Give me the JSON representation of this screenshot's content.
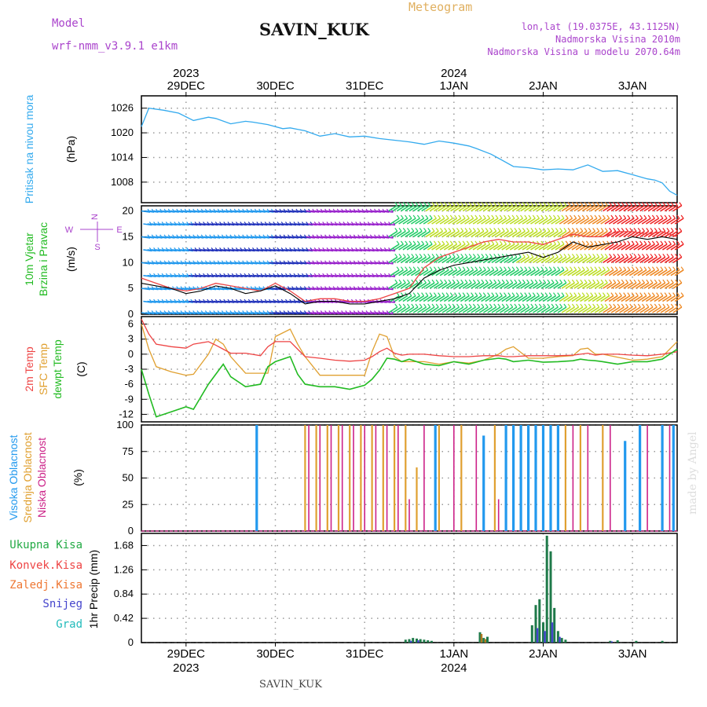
{
  "header": {
    "model_label": "Model",
    "model_name": "wrf-nmm_v3.9.1 e1km",
    "station": "SAVIN_KUK",
    "chart_kind": "Meteogram",
    "location": "lon,lat (19.0375E, 43.1125N)",
    "elevation": "Nadmorska Visina 2010m",
    "model_elevation": "Nadmorska Visina u modelu 2070.64m",
    "footer_station": "SAVIN_KUK",
    "watermark": "made by Angel"
  },
  "colors": {
    "pressure": "#33aaee",
    "wind_axis_label": "#22bb22",
    "temp_2m": "#ee4444",
    "temp_sfc": "#e0a030",
    "dewpoint": "#22bb22",
    "cloud_high": "#2299ee",
    "cloud_mid": "#e0a030",
    "cloud_low": "#cc2288",
    "precip_total": "#22aa44",
    "precip_conv": "#ee4444",
    "precip_frz": "#ee7733",
    "precip_snow": "#4444cc",
    "precip_graup": "#22bbbb",
    "title_accent": "#e0b060",
    "meta_text": "#aa44cc"
  },
  "time_axis": {
    "top_years": [
      {
        "label": "2023",
        "at": "29DEC"
      },
      {
        "label": "2024",
        "at": "1JAN"
      }
    ],
    "bottom_years": [
      {
        "label": "2023",
        "at": "29DEC"
      },
      {
        "label": "2024",
        "at": "1JAN"
      }
    ],
    "days": [
      "29DEC",
      "30DEC",
      "31DEC",
      "1JAN",
      "2JAN",
      "3JAN"
    ],
    "range_hours": [
      0,
      144
    ]
  },
  "chart_data": [
    {
      "type": "line",
      "panel": "pressure",
      "ylabel_line1": "Pritisak na nivou mora",
      "ylabel_unit": "(hPa)",
      "yticks": [
        1008,
        1014,
        1020,
        1026
      ],
      "ylim": [
        1003,
        1029
      ],
      "x_hours": [
        0,
        2,
        6,
        10,
        14,
        18,
        20,
        24,
        28,
        30,
        34,
        38,
        40,
        44,
        48,
        52,
        56,
        60,
        64,
        68,
        72,
        76,
        80,
        84,
        88,
        90,
        94,
        96,
        100,
        104,
        108,
        112,
        116,
        120,
        124,
        128,
        132,
        136,
        138,
        140,
        142,
        144
      ],
      "values": [
        1021.5,
        1026,
        1025.5,
        1024.8,
        1023,
        1023.8,
        1023.5,
        1022.2,
        1022.8,
        1022.6,
        1022,
        1021,
        1021.2,
        1020.5,
        1019.2,
        1019.8,
        1019,
        1019.2,
        1018.6,
        1018.2,
        1017.8,
        1017.2,
        1018,
        1017.5,
        1016.8,
        1016.2,
        1014.8,
        1013.8,
        1011.8,
        1011.5,
        1011,
        1011.2,
        1011,
        1012.2,
        1010.6,
        1010.8,
        1009.8,
        1008.8,
        1008.5,
        1007.8,
        1005.8,
        1004.8
      ]
    },
    {
      "type": "line",
      "panel": "wind",
      "ylabel_line1": "10m Vjetar",
      "ylabel_line2": "Brzina i Pravac",
      "ylabel_unit": "(m/s)",
      "compass": [
        "N",
        "E",
        "S",
        "W"
      ],
      "yticks": [
        0,
        5,
        10,
        15,
        20
      ],
      "ylim": [
        0,
        21
      ],
      "barb_color_scale": [
        "#2299ee",
        "#2233bb",
        "#9922cc",
        "#22cc66",
        "#bbdd22",
        "#ee8822",
        "#ee2222"
      ],
      "x_hours": [
        0,
        4,
        8,
        12,
        16,
        20,
        24,
        28,
        32,
        36,
        40,
        44,
        48,
        52,
        56,
        60,
        64,
        68,
        72,
        76,
        80,
        84,
        88,
        92,
        96,
        100,
        104,
        108,
        112,
        116,
        120,
        124,
        128,
        132,
        136,
        140,
        144
      ],
      "speed": [
        6,
        5.5,
        5,
        4,
        4.5,
        5.5,
        5,
        4,
        4.5,
        5.5,
        4,
        2,
        2.5,
        2.5,
        2,
        2,
        2.5,
        3,
        4,
        7,
        8.5,
        9.5,
        10,
        10.5,
        11,
        11.5,
        12,
        11,
        12,
        14,
        13,
        13.5,
        14,
        15,
        14.5,
        15,
        14.5
      ],
      "gust": [
        7,
        6,
        5,
        4.5,
        5,
        6,
        5.5,
        5,
        4.5,
        6,
        4.5,
        2.5,
        3,
        3,
        2.5,
        2.5,
        3,
        4,
        5,
        9,
        11,
        12,
        13,
        14,
        14.5,
        14,
        14,
        13.5,
        14.5,
        15.5,
        15,
        15,
        16,
        16,
        15.5,
        16,
        15
      ]
    },
    {
      "type": "line",
      "panel": "temperature",
      "ylabel_line1": "2m Temp",
      "ylabel_line2": "SFC Temp",
      "ylabel_line3": "dewpt Temp",
      "ylabel_unit": "(C)",
      "yticks": [
        -12,
        -9,
        -6,
        -3,
        0,
        3,
        6
      ],
      "ylim": [
        -13.5,
        7.5
      ],
      "x_hours": [
        0,
        2,
        4,
        8,
        12,
        14,
        18,
        20,
        22,
        24,
        28,
        32,
        34,
        36,
        40,
        42,
        44,
        48,
        52,
        56,
        60,
        62,
        64,
        66,
        68,
        70,
        72,
        76,
        80,
        84,
        88,
        92,
        96,
        98,
        100,
        104,
        108,
        112,
        116,
        118,
        120,
        122,
        124,
        128,
        132,
        136,
        140,
        144
      ],
      "t2m": [
        7,
        4,
        2,
        1.5,
        1.2,
        2,
        2.5,
        1.8,
        1,
        0.2,
        0.2,
        -0.3,
        1.5,
        2.5,
        2.5,
        1,
        -0.5,
        -0.8,
        -1.2,
        -1.4,
        -1.2,
        -0.5,
        0.5,
        1.2,
        0.2,
        -0.2,
        0,
        0,
        -0.3,
        -0.5,
        -0.5,
        -0.3,
        -0.3,
        -0.5,
        -0.5,
        -0.3,
        -0.3,
        -0.3,
        -0.2,
        0,
        0.2,
        -0.2,
        0,
        0,
        -0.2,
        -0.3,
        0,
        0.5
      ],
      "tsfc": [
        6,
        1,
        -2.5,
        -3.5,
        -4.2,
        -4,
        0,
        3,
        2,
        -0.5,
        -3.8,
        -3.8,
        -3.8,
        3.5,
        5,
        2,
        -0.5,
        -4.2,
        -4.2,
        -4.2,
        -4.2,
        0.5,
        4,
        3.5,
        -0.5,
        -1.5,
        -1.5,
        -1.5,
        -2,
        -1.5,
        -1.8,
        -1.2,
        0,
        1,
        1.5,
        -0.8,
        -0.8,
        -0.5,
        -0.3,
        1,
        1.2,
        0,
        0,
        -0.6,
        -1.2,
        -1,
        -0.5,
        2.5
      ],
      "dewpt": [
        -3,
        -8,
        -12.5,
        -11.5,
        -10.5,
        -11,
        -6,
        -4,
        -2,
        -4.5,
        -6.5,
        -6,
        -2.5,
        -1.5,
        -0.5,
        -4,
        -6,
        -6.5,
        -6.5,
        -7,
        -6.2,
        -5,
        -3.2,
        -0.8,
        -1,
        -1.5,
        -1,
        -2,
        -2.3,
        -1.5,
        -2,
        -1.2,
        -0.8,
        -1,
        -1.5,
        -1.2,
        -1.6,
        -1.5,
        -1.3,
        -1,
        -1.2,
        -1.3,
        -1.5,
        -2,
        -1.5,
        -1.5,
        -1,
        1
      ]
    },
    {
      "type": "bar",
      "panel": "cloud",
      "ylabel_line1": "Visoka Oblacnost",
      "ylabel_line2": "Srednja Oblacnost",
      "ylabel_line3": "Niska Oblacnost",
      "ylabel_unit": "(%)",
      "yticks": [
        0,
        25,
        50,
        75,
        100
      ],
      "ylim": [
        0,
        100
      ],
      "high_bars": [
        {
          "h": 31,
          "v": 100
        },
        {
          "h": 79,
          "v": 100
        },
        {
          "h": 92,
          "v": 90
        },
        {
          "h": 98,
          "v": 100
        },
        {
          "h": 100,
          "v": 100
        },
        {
          "h": 102,
          "v": 100
        },
        {
          "h": 104,
          "v": 100
        },
        {
          "h": 106,
          "v": 100
        },
        {
          "h": 108,
          "v": 100
        },
        {
          "h": 110,
          "v": 100
        },
        {
          "h": 112,
          "v": 100
        },
        {
          "h": 130,
          "v": 85
        },
        {
          "h": 134,
          "v": 100
        },
        {
          "h": 140,
          "v": 100
        },
        {
          "h": 143,
          "v": 100
        }
      ],
      "mid_bars": [
        {
          "h": 44,
          "v": 100
        },
        {
          "h": 47,
          "v": 100
        },
        {
          "h": 50,
          "v": 100
        },
        {
          "h": 53,
          "v": 100
        },
        {
          "h": 56,
          "v": 100
        },
        {
          "h": 59,
          "v": 100
        },
        {
          "h": 62,
          "v": 100
        },
        {
          "h": 65,
          "v": 100
        },
        {
          "h": 68,
          "v": 100
        },
        {
          "h": 71,
          "v": 100
        },
        {
          "h": 74,
          "v": 60
        },
        {
          "h": 80,
          "v": 100
        },
        {
          "h": 86,
          "v": 100
        },
        {
          "h": 95,
          "v": 100
        },
        {
          "h": 114,
          "v": 100
        },
        {
          "h": 118,
          "v": 100
        },
        {
          "h": 124,
          "v": 100
        }
      ],
      "low_bars": [
        {
          "h": 45,
          "v": 100
        },
        {
          "h": 48,
          "v": 100
        },
        {
          "h": 51,
          "v": 100
        },
        {
          "h": 54,
          "v": 100
        },
        {
          "h": 57,
          "v": 100
        },
        {
          "h": 60,
          "v": 100
        },
        {
          "h": 63,
          "v": 100
        },
        {
          "h": 66,
          "v": 100
        },
        {
          "h": 69,
          "v": 100
        },
        {
          "h": 72,
          "v": 30
        },
        {
          "h": 76,
          "v": 100
        },
        {
          "h": 84,
          "v": 100
        },
        {
          "h": 90,
          "v": 100
        },
        {
          "h": 96,
          "v": 30
        },
        {
          "h": 116,
          "v": 100
        },
        {
          "h": 120,
          "v": 100
        },
        {
          "h": 126,
          "v": 100
        },
        {
          "h": 136,
          "v": 100
        },
        {
          "h": 142,
          "v": 100
        }
      ]
    },
    {
      "type": "bar",
      "panel": "precip",
      "legend": [
        "Ukupna Kisa",
        "Konvek.Kisa",
        "Zaledj.Kisa",
        "Snijeg",
        "Grad"
      ],
      "ylabel_unit": "1hr Precip (mm)",
      "yticks": [
        0,
        0.42,
        0.84,
        1.26,
        1.68
      ],
      "ylim": [
        0,
        1.89
      ],
      "total_bars": [
        {
          "h": 71,
          "v": 0.05
        },
        {
          "h": 72,
          "v": 0.06
        },
        {
          "h": 73,
          "v": 0.08
        },
        {
          "h": 74,
          "v": 0.07
        },
        {
          "h": 75,
          "v": 0.06
        },
        {
          "h": 76,
          "v": 0.05
        },
        {
          "h": 77,
          "v": 0.04
        },
        {
          "h": 78,
          "v": 0.03
        },
        {
          "h": 91,
          "v": 0.18
        },
        {
          "h": 92,
          "v": 0.08
        },
        {
          "h": 93,
          "v": 0.1
        },
        {
          "h": 105,
          "v": 0.3
        },
        {
          "h": 106,
          "v": 0.65
        },
        {
          "h": 107,
          "v": 0.75
        },
        {
          "h": 108,
          "v": 0.35
        },
        {
          "h": 109,
          "v": 1.85
        },
        {
          "h": 110,
          "v": 1.58
        },
        {
          "h": 111,
          "v": 0.6
        },
        {
          "h": 112,
          "v": 0.2
        },
        {
          "h": 113,
          "v": 0.08
        },
        {
          "h": 114,
          "v": 0.05
        },
        {
          "h": 126,
          "v": 0.03
        },
        {
          "h": 128,
          "v": 0.04
        },
        {
          "h": 133,
          "v": 0.03
        },
        {
          "h": 140,
          "v": 0.03
        }
      ],
      "snow_bars": [
        {
          "h": 72,
          "v": 0.03
        },
        {
          "h": 74,
          "v": 0.04
        },
        {
          "h": 106,
          "v": 0.25
        },
        {
          "h": 108,
          "v": 0.2
        },
        {
          "h": 110,
          "v": 0.35
        },
        {
          "h": 112,
          "v": 0.1
        },
        {
          "h": 126,
          "v": 0.02
        }
      ],
      "frz_bars": [
        {
          "h": 91,
          "v": 0.15
        },
        {
          "h": 92,
          "v": 0.06
        }
      ]
    }
  ]
}
